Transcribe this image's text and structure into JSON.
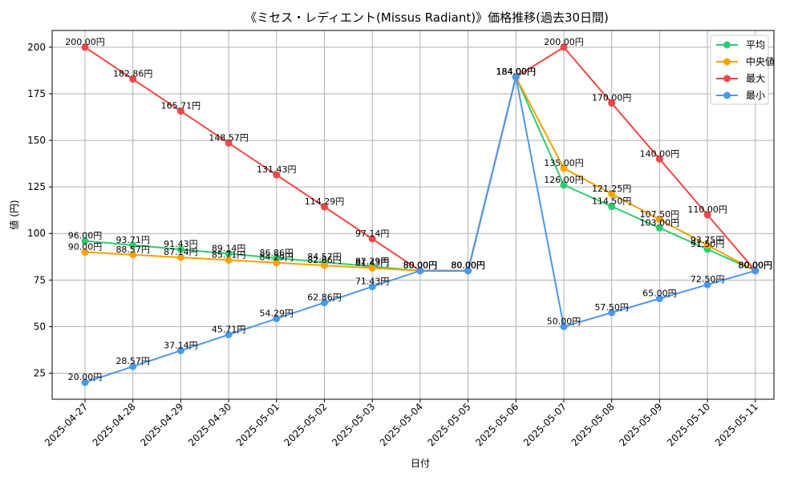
{
  "chart_data": {
    "type": "line",
    "title": "《ミセス・レディエント(Missus Radiant)》価格推移(過去30日間)",
    "xlabel": "日付",
    "ylabel": "値 (円)",
    "ylim": [
      11,
      209
    ],
    "yticks": [
      25,
      50,
      75,
      100,
      125,
      150,
      175,
      200
    ],
    "grid": true,
    "legend_position": "top-right",
    "value_suffix": "円",
    "categories": [
      "2025-04-27",
      "2025-04-28",
      "2025-04-29",
      "2025-04-30",
      "2025-05-01",
      "2025-05-02",
      "2025-05-03",
      "2025-05-04",
      "2025-05-05",
      "2025-05-06",
      "2025-05-07",
      "2025-05-08",
      "2025-05-09",
      "2025-05-10",
      "2025-05-11"
    ],
    "series": [
      {
        "name": "平均",
        "color": "#2ecc71",
        "values": [
          96.0,
          93.71,
          91.43,
          89.14,
          86.86,
          84.57,
          82.29,
          80.0,
          80.0,
          184.0,
          126.0,
          114.5,
          103.0,
          91.5,
          80.0
        ]
      },
      {
        "name": "中央値",
        "color": "#f5a300",
        "values": [
          90.0,
          88.57,
          87.14,
          85.71,
          84.29,
          82.86,
          81.43,
          80.0,
          80.0,
          184.0,
          135.0,
          121.25,
          107.5,
          93.75,
          80.0
        ]
      },
      {
        "name": "最大",
        "color": "#ef4747",
        "values": [
          200.0,
          182.86,
          165.71,
          148.57,
          131.43,
          114.29,
          97.14,
          80.0,
          80.0,
          184.0,
          200.0,
          170.0,
          140.0,
          110.0,
          80.0
        ]
      },
      {
        "name": "最小",
        "color": "#4a98ec",
        "values": [
          20.0,
          28.57,
          37.14,
          45.71,
          54.29,
          62.86,
          71.43,
          80.0,
          80.0,
          184.0,
          50.0,
          57.5,
          65.0,
          72.5,
          80.0
        ]
      }
    ]
  }
}
